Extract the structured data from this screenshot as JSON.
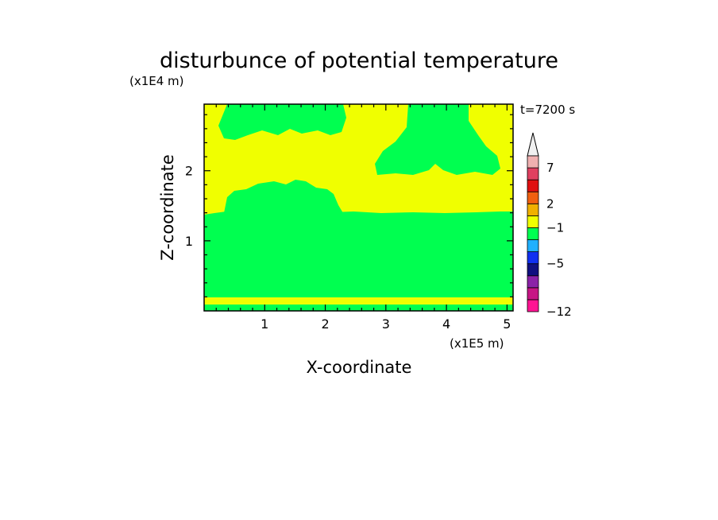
{
  "chart_data": {
    "type": "heatmap",
    "subtype": "filled-contour",
    "title": "disturbunce of potential temperature",
    "xlabel": "X-coordinate",
    "ylabel": "Z-coordinate",
    "x_scale_label": "(x1E5 m)",
    "y_scale_label": "(x1E4 m)",
    "time_label": "t=7200 s",
    "x_ticks": [
      "1",
      "2",
      "3",
      "4",
      "5"
    ],
    "y_ticks": [
      "1",
      "2"
    ],
    "xlim": [
      0,
      5.1
    ],
    "ylim": [
      0,
      2.95
    ],
    "grid": false,
    "colorbar": {
      "labels": [
        "7",
        "2",
        "-1",
        "-5",
        "-12"
      ],
      "colors": [
        "#ff1493",
        "#c71585",
        "#8b22a8",
        "#101080",
        "#1030f0",
        "#20b0ff",
        "#00ff50",
        "#f0ff00",
        "#f0b000",
        "#f06010",
        "#e01010",
        "#e04060",
        "#f0b0b0"
      ],
      "extend_top": true
    },
    "regions": [
      {
        "name": "lower-layer",
        "value_class": "green",
        "x_range": [
          0,
          5.1
        ],
        "z_range": [
          0.25,
          1.45
        ]
      },
      {
        "name": "surface-strip",
        "value_class": "yellow",
        "x_range": [
          0,
          5.1
        ],
        "z_range": [
          0.13,
          0.2
        ]
      },
      {
        "name": "left-mound",
        "value_class": "green",
        "x_range": [
          0.3,
          2.3
        ],
        "z_range": [
          1.45,
          1.85
        ]
      },
      {
        "name": "upper-right-patch",
        "value_class": "green",
        "x_range": [
          2.8,
          4.9
        ],
        "z_range": [
          1.95,
          2.95
        ]
      },
      {
        "name": "upper-left-patch",
        "value_class": "green",
        "x_range": [
          0.2,
          2.4
        ],
        "z_range": [
          2.5,
          2.95
        ]
      }
    ],
    "colors": {
      "background_field": "#f0ff00",
      "anomaly_field": "#00ff50"
    }
  }
}
